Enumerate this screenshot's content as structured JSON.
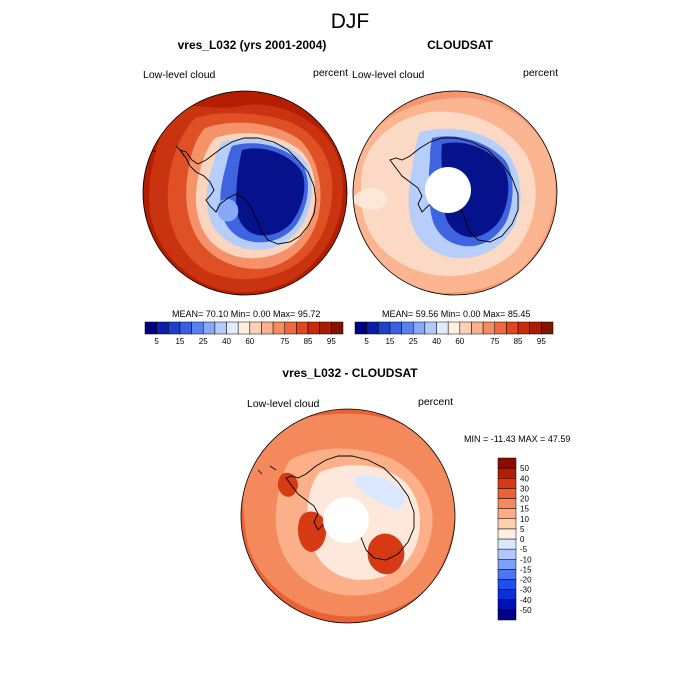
{
  "figure": {
    "title": "DJF",
    "left_panel": {
      "title": "vres_L032 (yrs 2001-2004)",
      "left_label": "Low-level cloud",
      "right_label": "percent",
      "stats_text": "MEAN=  70.10  Min=   0.00  Max=  95.72"
    },
    "right_panel": {
      "title": "CLOUDSAT",
      "left_label": "Low-level cloud",
      "right_label": "percent",
      "stats_text": "MEAN=  59.56  Min=   0.00  Max=  85.45"
    },
    "diff_panel": {
      "title": "vres_L032 - CLOUDSAT",
      "left_label": "Low-level cloud",
      "right_label": "percent",
      "stats_text": "MIN = -11.43 MAX =  47.59"
    }
  },
  "chart_data": [
    {
      "type": "heatmap",
      "projection": "south-polar-stereographic",
      "title": "vres_L032 (yrs 2001-2004)",
      "variable": "Low-level cloud",
      "units": "percent",
      "mean": 70.1,
      "min": 0.0,
      "max": 95.72,
      "colorbar": {
        "levels": [
          5,
          10,
          15,
          20,
          25,
          30,
          40,
          50,
          60,
          65,
          70,
          75,
          80,
          85,
          90,
          95
        ],
        "tick_labels": [
          "5",
          "15",
          "25",
          "40",
          "60",
          "75",
          "85",
          "95"
        ],
        "colors": [
          "#000080",
          "#0a1fa6",
          "#1f40c8",
          "#3a60de",
          "#5a82ee",
          "#86a8f7",
          "#b3cbfb",
          "#e0ebff",
          "#fff1e2",
          "#fdd2b7",
          "#fbb08b",
          "#f68c62",
          "#ee6a3e",
          "#e0471f",
          "#c72c0c",
          "#a61d02",
          "#801400"
        ]
      },
      "regions": {
        "southern_ocean": 85,
        "antarctic_coast": 70,
        "east_antarctic_interior": 5,
        "west_antarctic": 30
      }
    },
    {
      "type": "heatmap",
      "projection": "south-polar-stereographic",
      "title": "CLOUDSAT",
      "variable": "Low-level cloud",
      "units": "percent",
      "mean": 59.56,
      "min": 0.0,
      "max": 85.45,
      "colorbar": {
        "levels": [
          5,
          10,
          15,
          20,
          25,
          30,
          40,
          50,
          60,
          65,
          70,
          75,
          80,
          85,
          90,
          95
        ],
        "tick_labels": [
          "5",
          "15",
          "25",
          "40",
          "60",
          "75",
          "85",
          "95"
        ],
        "colors": [
          "#000080",
          "#0a1fa6",
          "#1f40c8",
          "#3a60de",
          "#5a82ee",
          "#86a8f7",
          "#b3cbfb",
          "#e0ebff",
          "#fff1e2",
          "#fdd2b7",
          "#fbb08b",
          "#f68c62",
          "#ee6a3e",
          "#e0471f",
          "#c72c0c",
          "#a61d02",
          "#801400"
        ]
      },
      "regions": {
        "southern_ocean": 75,
        "midlatitudes": 62,
        "antarctic_coast": 55,
        "east_antarctic_interior": 5,
        "pole_hole": "no data"
      }
    },
    {
      "type": "heatmap",
      "projection": "south-polar-stereographic",
      "title": "vres_L032 - CLOUDSAT",
      "variable": "Low-level cloud",
      "units": "percent",
      "min": -11.43,
      "max": 47.59,
      "colorbar": {
        "orientation": "vertical",
        "levels": [
          -50,
          -40,
          -30,
          -20,
          -15,
          -10,
          -5,
          0,
          5,
          10,
          15,
          20,
          30,
          40,
          50
        ],
        "tick_labels": [
          "-50",
          "-40",
          "-30",
          "-20",
          "-15",
          "-10",
          "-5",
          "0",
          "5",
          "10",
          "15",
          "20",
          "30",
          "40",
          "50"
        ],
        "colors": [
          "#00008c",
          "#0010b4",
          "#0a30d6",
          "#1f50ec",
          "#4a78f4",
          "#7ea0f8",
          "#b2c8fc",
          "#dce8ff",
          "#fff0e2",
          "#fdd0b0",
          "#fbae86",
          "#f48a5c",
          "#e86236",
          "#d63a14",
          "#b41e00",
          "#8c0a00"
        ]
      },
      "regions": {
        "southern_ocean": 20,
        "east_antarctic_interior": 0,
        "weddell_sea_coast": 40,
        "antarctic_peninsula": 40,
        "pole_hole": "no data"
      }
    }
  ]
}
